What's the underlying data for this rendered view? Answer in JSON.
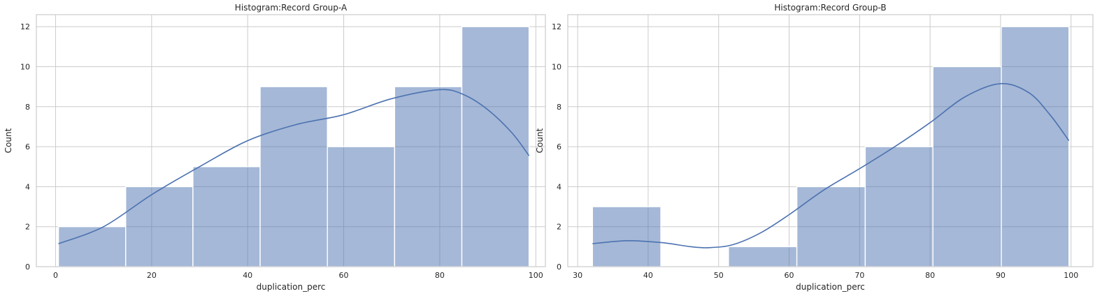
{
  "chart_data": [
    {
      "type": "histogram",
      "title": "Histogram:Record Group-A",
      "xlabel": "duplication_perc",
      "ylabel": "Count",
      "xlim": [
        -4,
        102
      ],
      "ylim": [
        0,
        12.6
      ],
      "xticks": [
        0,
        20,
        40,
        60,
        80,
        100
      ],
      "yticks": [
        0,
        2,
        4,
        6,
        8,
        10,
        12
      ],
      "grid": true,
      "bins": [
        {
          "start": 0.6,
          "end": 14.6,
          "count": 2
        },
        {
          "start": 14.6,
          "end": 28.6,
          "count": 4
        },
        {
          "start": 28.6,
          "end": 42.6,
          "count": 5
        },
        {
          "start": 42.6,
          "end": 56.6,
          "count": 9
        },
        {
          "start": 56.6,
          "end": 70.6,
          "count": 6
        },
        {
          "start": 70.6,
          "end": 84.6,
          "count": 9
        },
        {
          "start": 84.6,
          "end": 98.6,
          "count": 12
        }
      ],
      "kde": {
        "x": [
          0.6,
          10,
          20,
          30,
          40,
          50,
          60,
          70,
          80,
          85,
          90,
          95,
          98.6
        ],
        "y": [
          1.15,
          2.0,
          3.6,
          5.0,
          6.3,
          7.1,
          7.6,
          8.4,
          8.85,
          8.6,
          7.85,
          6.7,
          5.55
        ]
      },
      "colors": {
        "bar": "#4c72b0",
        "kde": "#4c72b0",
        "grid": "#cccccc"
      }
    },
    {
      "type": "histogram",
      "title": "Histogram:Record Group-B",
      "xlabel": "duplication_perc",
      "ylabel": "Count",
      "xlim": [
        28.6,
        103.1
      ],
      "ylim": [
        0,
        12.6
      ],
      "xticks": [
        30,
        40,
        50,
        60,
        70,
        80,
        90,
        100
      ],
      "yticks": [
        0,
        2,
        4,
        6,
        8,
        10,
        12
      ],
      "grid": true,
      "bins": [
        {
          "start": 32.1,
          "end": 41.8,
          "count": 3
        },
        {
          "start": 41.8,
          "end": 51.4,
          "count": 0
        },
        {
          "start": 51.4,
          "end": 61.1,
          "count": 1
        },
        {
          "start": 61.1,
          "end": 70.8,
          "count": 4
        },
        {
          "start": 70.8,
          "end": 80.4,
          "count": 6
        },
        {
          "start": 80.4,
          "end": 90.1,
          "count": 10
        },
        {
          "start": 90.1,
          "end": 99.7,
          "count": 12
        }
      ],
      "kde": {
        "x": [
          32.1,
          37,
          42,
          46,
          48.5,
          52,
          56,
          60,
          65,
          70,
          75,
          80,
          85,
          90,
          94,
          97,
          99.7
        ],
        "y": [
          1.15,
          1.3,
          1.2,
          1.0,
          0.95,
          1.1,
          1.7,
          2.6,
          3.85,
          4.9,
          6.0,
          7.2,
          8.5,
          9.15,
          8.7,
          7.6,
          6.3
        ]
      },
      "colors": {
        "bar": "#4c72b0",
        "kde": "#4c72b0",
        "grid": "#cccccc"
      }
    }
  ]
}
